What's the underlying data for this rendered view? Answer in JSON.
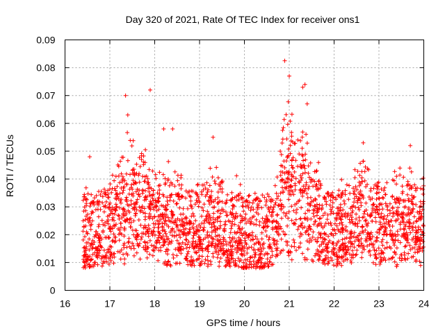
{
  "chart_data": {
    "type": "scatter",
    "title": "Day 320 of 2021, Rate Of TEC Index for receiver ons1",
    "xlabel": "GPS time / hours",
    "ylabel": "ROTI / TECUs",
    "xlim": [
      16,
      24
    ],
    "ylim": [
      0,
      0.09
    ],
    "xticks": [
      16,
      17,
      18,
      19,
      20,
      21,
      22,
      23,
      24
    ],
    "yticks": [
      0,
      0.01,
      0.02,
      0.03,
      0.04,
      0.05,
      0.06,
      0.07,
      0.08,
      0.09
    ],
    "xtick_labels": [
      "16",
      "17",
      "18",
      "19",
      "20",
      "21",
      "22",
      "23",
      "24"
    ],
    "ytick_labels": [
      "0",
      "0.01",
      "0.02",
      "0.03",
      "0.04",
      "0.05",
      "0.06",
      "0.07",
      "0.08",
      "0.09"
    ],
    "grid": true,
    "marker": "+",
    "marker_color": "#ff0000",
    "x_range_of_data": [
      16.4,
      24.0
    ],
    "typical_band": [
      0.008,
      0.035
    ],
    "notable_points": [
      {
        "x": 16.55,
        "y": 0.048
      },
      {
        "x": 17.35,
        "y": 0.07
      },
      {
        "x": 17.4,
        "y": 0.063
      },
      {
        "x": 17.9,
        "y": 0.072
      },
      {
        "x": 18.2,
        "y": 0.058
      },
      {
        "x": 18.4,
        "y": 0.058
      },
      {
        "x": 19.3,
        "y": 0.055
      },
      {
        "x": 20.9,
        "y": 0.0825
      },
      {
        "x": 21.0,
        "y": 0.077
      },
      {
        "x": 21.3,
        "y": 0.073
      },
      {
        "x": 21.35,
        "y": 0.074
      },
      {
        "x": 21.4,
        "y": 0.067
      },
      {
        "x": 22.65,
        "y": 0.053
      },
      {
        "x": 23.7,
        "y": 0.052
      }
    ]
  }
}
